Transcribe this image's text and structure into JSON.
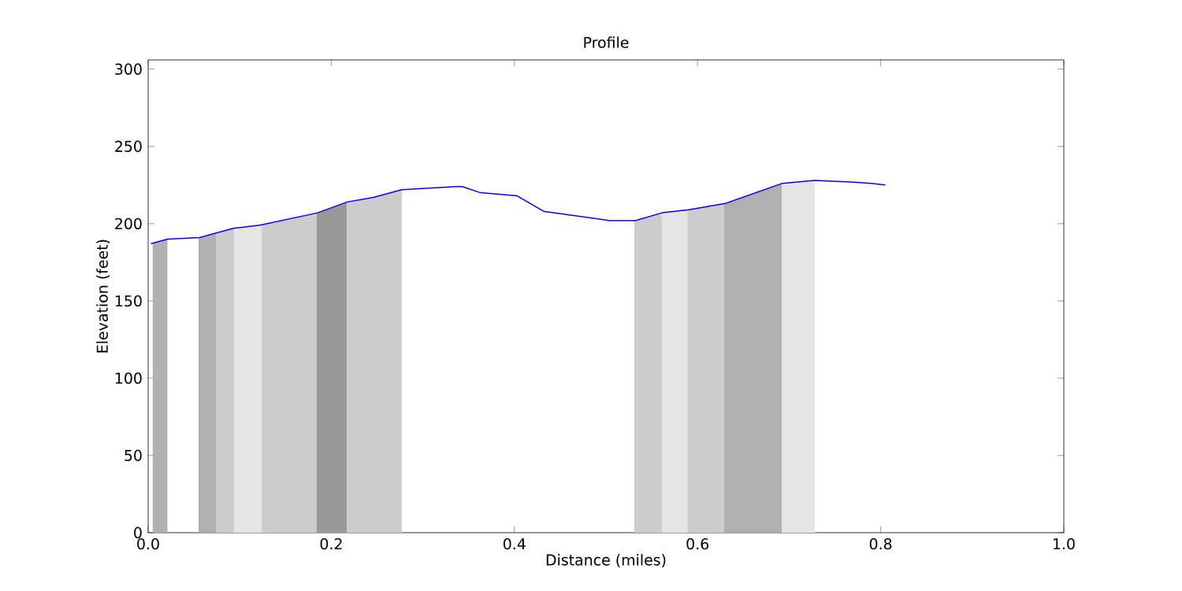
{
  "chart_data": {
    "type": "line",
    "title": "Profile",
    "xlabel": "Distance (miles)",
    "ylabel": "Elevation (feet)",
    "xlim": [
      0,
      1.0
    ],
    "ylim": [
      0,
      306
    ],
    "xticks": [
      {
        "value": 0,
        "label": "0.0"
      },
      {
        "value": 0.2,
        "label": "0.2"
      },
      {
        "value": 0.4,
        "label": "0.4"
      },
      {
        "value": 0.6,
        "label": "0.6"
      },
      {
        "value": 0.8,
        "label": "0.8"
      },
      {
        "value": 1.0,
        "label": "1.0"
      }
    ],
    "yticks": [
      0,
      50,
      100,
      150,
      200,
      250,
      300
    ],
    "grid": false,
    "series": [
      {
        "type": "area",
        "color": "#b0b0b0",
        "x": [
          0.005,
          0.021
        ],
        "values": [
          187,
          190
        ]
      },
      {
        "type": "area",
        "color": "#b0b0b0",
        "x": [
          0.055,
          0.074
        ],
        "values": [
          191,
          194
        ]
      },
      {
        "type": "area",
        "color": "#cccccc",
        "x": [
          0.074,
          0.094
        ],
        "values": [
          194,
          197
        ]
      },
      {
        "type": "area",
        "color": "#e5e5e5",
        "x": [
          0.094,
          0.124
        ],
        "values": [
          197,
          199
        ]
      },
      {
        "type": "area",
        "color": "#cccccc",
        "x": [
          0.124,
          0.184
        ],
        "values": [
          199,
          207
        ]
      },
      {
        "type": "area",
        "color": "#999999",
        "x": [
          0.184,
          0.217
        ],
        "values": [
          207,
          214
        ]
      },
      {
        "type": "area",
        "color": "#cccccc",
        "x": [
          0.217,
          0.246,
          0.277
        ],
        "values": [
          214,
          217,
          222
        ]
      },
      {
        "type": "area",
        "color": "#cccccc",
        "x": [
          0.531,
          0.561
        ],
        "values": [
          202,
          207
        ]
      },
      {
        "type": "area",
        "color": "#e5e5e5",
        "x": [
          0.561,
          0.589
        ],
        "values": [
          207,
          209
        ]
      },
      {
        "type": "area",
        "color": "#cccccc",
        "x": [
          0.589,
          0.629
        ],
        "values": [
          209,
          213
        ]
      },
      {
        "type": "area",
        "color": "#b0b0b0",
        "x": [
          0.629,
          0.692
        ],
        "values": [
          213,
          226
        ]
      },
      {
        "type": "area",
        "color": "#e5e5e5",
        "x": [
          0.692,
          0.728
        ],
        "values": [
          226,
          228
        ]
      },
      {
        "color": "#0000ff",
        "x": [
          0.003,
          0.021,
          0.056,
          0.093,
          0.122,
          0.185,
          0.217,
          0.246,
          0.277,
          0.337,
          0.343,
          0.363,
          0.403,
          0.432,
          0.504,
          0.532,
          0.561,
          0.59,
          0.63,
          0.692,
          0.728,
          0.768,
          0.79,
          0.805
        ],
        "values": [
          187,
          190,
          191,
          197,
          199,
          207,
          214,
          217,
          222,
          224,
          224,
          220,
          218,
          208,
          202,
          202,
          207,
          209,
          213,
          226,
          228,
          227,
          226,
          225
        ]
      }
    ]
  }
}
